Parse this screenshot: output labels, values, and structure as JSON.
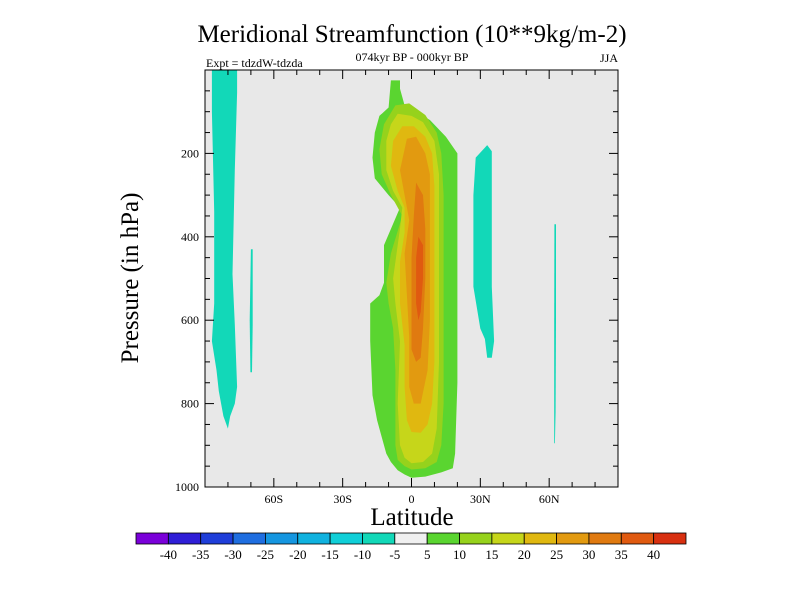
{
  "chart_data": {
    "type": "contour",
    "title": "Meridional Streamfunction (10**9kg/m-2)",
    "subtitle_center": "074kyr BP - 000kyr BP",
    "subtitle_left": "Expt = tdzdW-tdzda",
    "subtitle_right": "JJA",
    "xlabel": "Latitude",
    "ylabel": "Pressure (in hPa)",
    "xlim": [
      -90,
      90
    ],
    "ylim": [
      0,
      1000
    ],
    "y_inverted": true,
    "xticks": [
      {
        "value": -60,
        "label": "60S"
      },
      {
        "value": -30,
        "label": "30S"
      },
      {
        "value": 0,
        "label": "0"
      },
      {
        "value": 30,
        "label": "30N"
      },
      {
        "value": 60,
        "label": "60N"
      }
    ],
    "yticks": [
      {
        "value": 200,
        "label": "200"
      },
      {
        "value": 400,
        "label": "400"
      },
      {
        "value": 600,
        "label": "600"
      },
      {
        "value": 800,
        "label": "800"
      },
      {
        "value": 1000,
        "label": "1000"
      }
    ],
    "background_color": "#e8e8e8",
    "colorbar": {
      "levels": [
        "-40",
        "-35",
        "-30",
        "-25",
        "-20",
        "-15",
        "-10",
        "-5",
        "5",
        "10",
        "15",
        "20",
        "25",
        "30",
        "35",
        "40"
      ],
      "colors": [
        "#7a00d9",
        "#2f1ed7",
        "#1f3ed9",
        "#1f6ee0",
        "#1596e0",
        "#10b2df",
        "#10cfd8",
        "#12d8b8",
        "#f0f0f0",
        "#5ad530",
        "#96d21c",
        "#c6d61a",
        "#e0b810",
        "#e29a10",
        "#e07a10",
        "#e05a10",
        "#d83010"
      ]
    },
    "regions": [
      {
        "name": "neg-band-60s",
        "class": "-10 to -5",
        "color": "#12d8b8",
        "points": [
          [
            -87,
            0
          ],
          [
            -76,
            0
          ],
          [
            -76,
            55
          ],
          [
            -77,
            240
          ],
          [
            -78,
            490
          ],
          [
            -77,
            610
          ],
          [
            -76,
            760
          ],
          [
            -77,
            800
          ],
          [
            -79,
            830
          ],
          [
            -80,
            860
          ],
          [
            -82,
            830
          ],
          [
            -84,
            770
          ],
          [
            -85,
            720
          ],
          [
            -87,
            650
          ],
          [
            -86,
            560
          ],
          [
            -86,
            340
          ],
          [
            -87,
            100
          ]
        ]
      },
      {
        "name": "neg-sliver-70s",
        "class": "-10 to -5",
        "color": "#12d8b8",
        "points": [
          [
            -70,
            430
          ],
          [
            -69.2,
            430
          ],
          [
            -69.2,
            610
          ],
          [
            -69.5,
            725
          ],
          [
            -70.2,
            725
          ],
          [
            -70.5,
            600
          ]
        ]
      },
      {
        "name": "neg-band-30n",
        "class": "-10 to -5",
        "color": "#12d8b8",
        "points": [
          [
            33,
            180
          ],
          [
            35,
            195
          ],
          [
            35,
            320
          ],
          [
            35,
            520
          ],
          [
            36,
            650
          ],
          [
            35,
            690
          ],
          [
            33,
            690
          ],
          [
            32,
            645
          ],
          [
            30,
            620
          ],
          [
            27,
            520
          ],
          [
            27,
            300
          ],
          [
            28,
            210
          ]
        ]
      },
      {
        "name": "neg-sliver-60n",
        "class": "-10 to -5",
        "color": "#12d8b8",
        "points": [
          [
            62.3,
            370
          ],
          [
            63,
            370
          ],
          [
            63,
            600
          ],
          [
            62.8,
            820
          ],
          [
            62.5,
            895
          ],
          [
            62.2,
            895
          ],
          [
            62.2,
            600
          ]
        ]
      },
      {
        "name": "pos-5",
        "class": "5 to 10",
        "color": "#5ad530",
        "points": [
          [
            -9,
            25
          ],
          [
            -5,
            25
          ],
          [
            -5,
            45
          ],
          [
            -3,
            85
          ],
          [
            8,
            120
          ],
          [
            15,
            160
          ],
          [
            20,
            200
          ],
          [
            20,
            400
          ],
          [
            20,
            750
          ],
          [
            19,
            920
          ],
          [
            18,
            955
          ],
          [
            13,
            965
          ],
          [
            6,
            975
          ],
          [
            0,
            978
          ],
          [
            -3,
            970
          ],
          [
            -6,
            960
          ],
          [
            -9,
            940
          ],
          [
            -11,
            920
          ],
          [
            -13,
            880
          ],
          [
            -15,
            840
          ],
          [
            -17,
            780
          ],
          [
            -18,
            650
          ],
          [
            -18,
            560
          ],
          [
            -14,
            540
          ],
          [
            -12,
            510
          ],
          [
            -12,
            420
          ],
          [
            -5,
            330
          ],
          [
            -10,
            300
          ],
          [
            -13,
            280
          ],
          [
            -16,
            260
          ],
          [
            -17,
            210
          ],
          [
            -16,
            150
          ],
          [
            -14,
            110
          ],
          [
            -10,
            90
          ]
        ]
      },
      {
        "name": "pos-10",
        "class": "10 to 15",
        "color": "#96d21c",
        "points": [
          [
            -7,
            85
          ],
          [
            -1,
            80
          ],
          [
            6,
            108
          ],
          [
            11,
            150
          ],
          [
            13,
            200
          ],
          [
            14,
            300
          ],
          [
            14,
            500
          ],
          [
            14,
            800
          ],
          [
            13,
            900
          ],
          [
            11,
            940
          ],
          [
            6,
            955
          ],
          [
            0,
            958
          ],
          [
            -3,
            950
          ],
          [
            -6,
            935
          ],
          [
            -7,
            900
          ],
          [
            -7,
            720
          ],
          [
            -8,
            620
          ],
          [
            -10,
            560
          ],
          [
            -11,
            510
          ],
          [
            -9,
            440
          ],
          [
            -4,
            350
          ],
          [
            -9,
            300
          ],
          [
            -13,
            250
          ],
          [
            -14,
            190
          ],
          [
            -12,
            130
          ]
        ]
      },
      {
        "name": "pos-15",
        "class": "15 to 20",
        "color": "#c6d61a",
        "points": [
          [
            -6,
            105
          ],
          [
            0,
            110
          ],
          [
            5,
            125
          ],
          [
            10,
            170
          ],
          [
            12,
            250
          ],
          [
            12,
            500
          ],
          [
            12,
            700
          ],
          [
            11,
            860
          ],
          [
            9,
            920
          ],
          [
            5,
            940
          ],
          [
            0,
            943
          ],
          [
            -3,
            930
          ],
          [
            -5,
            900
          ],
          [
            -6,
            800
          ],
          [
            -5,
            650
          ],
          [
            -7,
            560
          ],
          [
            -8,
            500
          ],
          [
            -5,
            380
          ],
          [
            -4,
            330
          ],
          [
            -8,
            290
          ],
          [
            -11,
            240
          ],
          [
            -11,
            170
          ],
          [
            -9,
            130
          ]
        ]
      },
      {
        "name": "pos-20",
        "class": "20 to 25",
        "color": "#e0b810",
        "points": [
          [
            -4,
            135
          ],
          [
            1,
            135
          ],
          [
            6,
            160
          ],
          [
            9,
            200
          ],
          [
            10,
            280
          ],
          [
            10,
            500
          ],
          [
            10,
            700
          ],
          [
            9,
            800
          ],
          [
            7,
            850
          ],
          [
            4,
            870
          ],
          [
            0,
            868
          ],
          [
            -2,
            840
          ],
          [
            -3,
            760
          ],
          [
            -3,
            660
          ],
          [
            -5,
            560
          ],
          [
            -5,
            460
          ],
          [
            -3,
            390
          ],
          [
            -3,
            330
          ],
          [
            -6,
            290
          ],
          [
            -9,
            230
          ],
          [
            -8,
            170
          ]
        ]
      },
      {
        "name": "pos-25",
        "class": "25 to 30",
        "color": "#e29a10",
        "points": [
          [
            -2,
            165
          ],
          [
            2,
            160
          ],
          [
            6,
            200
          ],
          [
            8,
            250
          ],
          [
            8,
            400
          ],
          [
            8,
            600
          ],
          [
            7,
            720
          ],
          [
            4,
            800
          ],
          [
            1,
            800
          ],
          [
            -1,
            760
          ],
          [
            -1,
            640
          ],
          [
            -2,
            540
          ],
          [
            -3,
            440
          ],
          [
            -1,
            360
          ],
          [
            -3,
            300
          ],
          [
            -5,
            240
          ]
        ]
      },
      {
        "name": "pos-30",
        "class": "30 to 35",
        "color": "#e07a10",
        "points": [
          [
            2,
            270
          ],
          [
            5,
            300
          ],
          [
            6,
            380
          ],
          [
            6,
            500
          ],
          [
            5,
            620
          ],
          [
            4,
            690
          ],
          [
            2,
            700
          ],
          [
            0,
            670
          ],
          [
            0,
            560
          ],
          [
            0,
            450
          ],
          [
            1,
            350
          ]
        ]
      },
      {
        "name": "pos-35",
        "class": "35 to 40",
        "color": "#e05a10",
        "points": [
          [
            3,
            400
          ],
          [
            5,
            420
          ],
          [
            5,
            500
          ],
          [
            4,
            580
          ],
          [
            3,
            600
          ],
          [
            2,
            560
          ],
          [
            2,
            450
          ]
        ]
      }
    ]
  }
}
